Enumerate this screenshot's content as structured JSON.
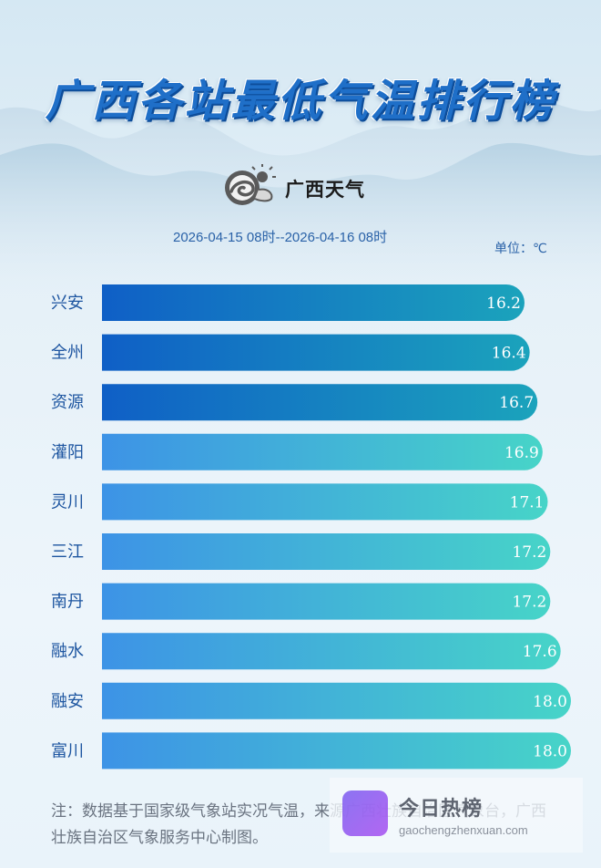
{
  "header": {
    "title": "广西各站最低气温排行榜",
    "brand": "广西天气",
    "period": "2026-04-15 08时--2026-04-16 08时",
    "unit": "单位：℃"
  },
  "chart_data": {
    "type": "bar",
    "orientation": "horizontal",
    "categories": [
      "兴安",
      "全州",
      "资源",
      "灌阳",
      "灵川",
      "三江",
      "南丹",
      "融水",
      "融安",
      "富川"
    ],
    "values": [
      16.2,
      16.4,
      16.7,
      16.9,
      17.1,
      17.2,
      17.2,
      17.6,
      18.0,
      18.0
    ],
    "value_labels": [
      "16.2",
      "16.4",
      "16.7",
      "16.9",
      "17.1",
      "17.2",
      "17.2",
      "17.6",
      "18.0",
      "18.0"
    ],
    "colors": {
      "top3_start": "#0f5fc6",
      "top3_end": "#1ba3bc",
      "rest_start": "#3d93e6",
      "rest_end": "#47d4c8"
    },
    "grid": false,
    "legend": "none"
  },
  "footer": {
    "note": "注：数据基于国家级气象站实况气温，来源广西壮族自治区气象台，广西壮族自治区气象服务中心制图。"
  },
  "watermark": {
    "title": "今日热榜",
    "url": "gaochengzhenxuan.com"
  }
}
